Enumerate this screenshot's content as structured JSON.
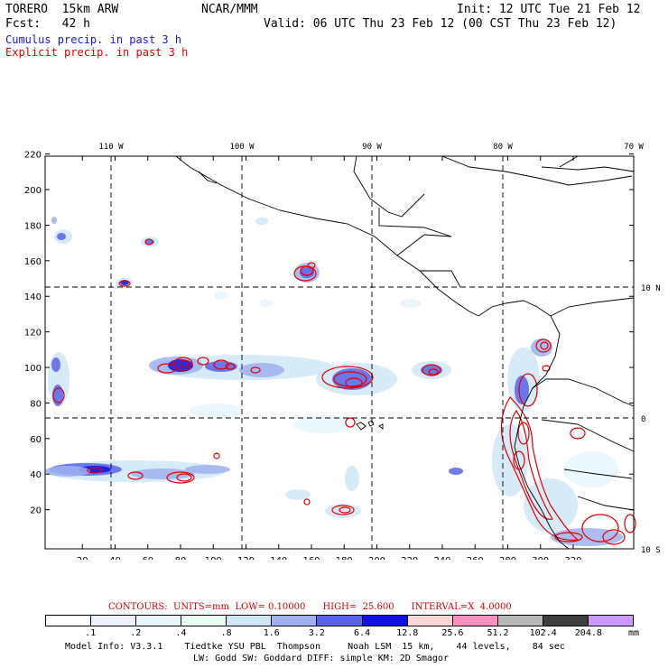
{
  "header": {
    "model": "TORERO  15km ARW",
    "org": "NCAR/MMM",
    "init": "Init: 12 UTC Tue 21 Feb 12",
    "fcst": "Fcst:   42 h",
    "valid": "Valid: 06 UTC Thu 23 Feb 12 (00 CST Thu 23 Feb 12)"
  },
  "fields": {
    "cumulus": "Cumulus precip. in past 3 h",
    "explicit": "Explicit precip. in past 3 h",
    "cumulus_color": "#1a1acc",
    "explicit_color": "#e00000"
  },
  "axes": {
    "x_ticks": [
      "20",
      "40",
      "60",
      "80",
      "100",
      "120",
      "140",
      "160",
      "180",
      "200",
      "220",
      "240",
      "260",
      "280",
      "300",
      "320"
    ],
    "y_ticks": [
      "20",
      "40",
      "60",
      "80",
      "100",
      "120",
      "140",
      "160",
      "180",
      "200",
      "220"
    ],
    "lon_labels": [
      "110 W",
      "100 W",
      "90 W",
      "80 W",
      "70 W"
    ],
    "lat_labels": [
      "10 N",
      "0",
      "10 S"
    ]
  },
  "contours": {
    "text": "CONTOURS:  UNITS=mm  LOW= 0.10000      HIGH=  25.600      INTERVAL=X  4.0000"
  },
  "colorbar": {
    "labels": [
      ".1",
      ".2",
      ".4",
      ".8",
      "1.6",
      "3.2",
      "6.4",
      "12.8",
      "25.6",
      "51.2",
      "102.4",
      "204.8"
    ],
    "unit": "mm",
    "colors": [
      "#ffffff",
      "#eef2ff",
      "#e6f6fb",
      "#e8fff4",
      "#cfe6f7",
      "#9fb1ee",
      "#5a63e6",
      "#1010e0",
      "#ffd6d6",
      "#ff8fbf",
      "#b8b8b8",
      "#404040",
      "#cc99ff"
    ]
  },
  "footer": {
    "line1": "Model Info: V3.3.1    Tiedtke YSU PBL  Thompson     Noah LSM  15 km,    44 levels,    84 sec",
    "line2": "LW: Godd SW: Goddard DIFF: simple KM: 2D Smagor"
  }
}
